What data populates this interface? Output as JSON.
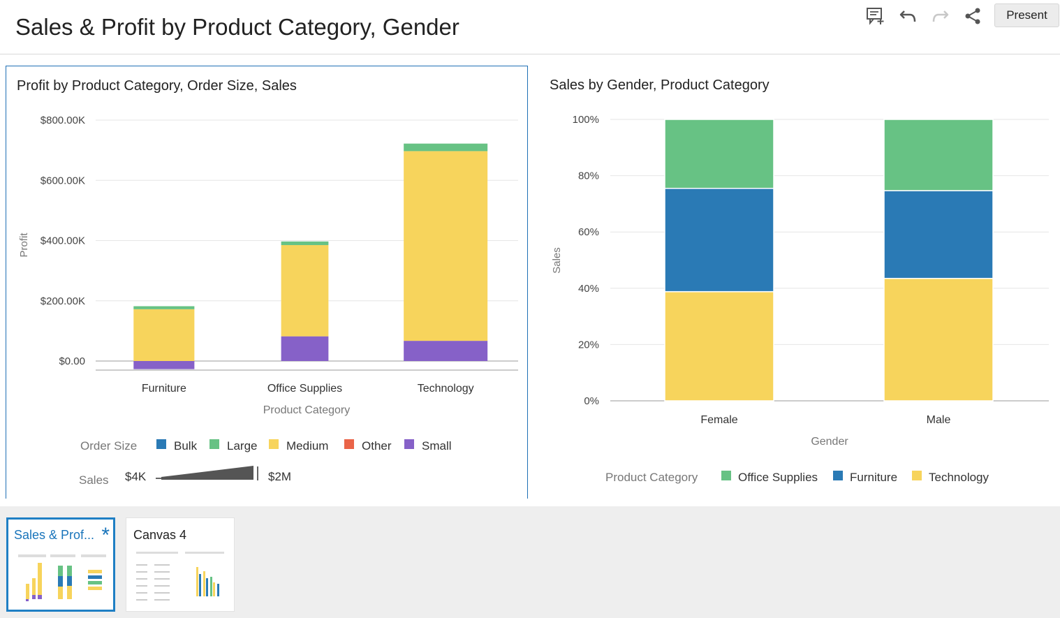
{
  "header": {
    "title": "Sales & Profit by Product Category, Gender",
    "present_label": "Present",
    "icons": [
      "add-comment-icon",
      "undo-icon",
      "redo-icon",
      "share-icon"
    ]
  },
  "left_panel": {
    "title": "Profit by Product Category, Order Size, Sales",
    "legend": {
      "title": "Order Size",
      "items": [
        {
          "label": "Bulk",
          "color": "#2a7ab5"
        },
        {
          "label": "Large",
          "color": "#67c284"
        },
        {
          "label": "Medium",
          "color": "#f7d45c"
        },
        {
          "label": "Other",
          "color": "#ea6448"
        },
        {
          "label": "Small",
          "color": "#8661c8"
        }
      ]
    },
    "size_legend": {
      "title": "Sales",
      "min_label": "$4K",
      "max_label": "$2M"
    }
  },
  "right_panel": {
    "title": "Sales by Gender, Product Category",
    "legend": {
      "title": "Product Category",
      "items": [
        {
          "label": "Office Supplies",
          "color": "#67c284"
        },
        {
          "label": "Furniture",
          "color": "#2a7ab5"
        },
        {
          "label": "Technology",
          "color": "#f7d45c"
        }
      ]
    }
  },
  "chart_data": [
    {
      "type": "bar",
      "stacked": true,
      "title": "Profit by Product Category, Order Size, Sales",
      "xlabel": "Product Category",
      "ylabel": "Profit",
      "categories": [
        "Furniture",
        "Office Supplies",
        "Technology"
      ],
      "ylim": [
        -30000,
        800000
      ],
      "yticks": [
        0,
        200000,
        400000,
        600000,
        800000
      ],
      "ytick_labels": [
        "$0.00",
        "$200.00K",
        "$400.00K",
        "$600.00K",
        "$800.00K"
      ],
      "width_encoding": "Sales",
      "series": [
        {
          "name": "Small",
          "color": "#8661c8",
          "values": [
            -27000,
            82000,
            67000
          ]
        },
        {
          "name": "Medium",
          "color": "#f7d45c",
          "values": [
            172000,
            303000,
            630000
          ]
        },
        {
          "name": "Large",
          "color": "#67c284",
          "values": [
            10000,
            12000,
            25000
          ]
        }
      ],
      "relative_widths": [
        0.45,
        0.35,
        0.62
      ],
      "grid": true
    },
    {
      "type": "bar",
      "stacked": true,
      "percent": true,
      "title": "Sales by Gender, Product Category",
      "xlabel": "Gender",
      "ylabel": "Sales",
      "categories": [
        "Female",
        "Male"
      ],
      "ylim": [
        0,
        100
      ],
      "yticks": [
        0,
        20,
        40,
        60,
        80,
        100
      ],
      "ytick_labels": [
        "0%",
        "20%",
        "40%",
        "60%",
        "80%",
        "100%"
      ],
      "series": [
        {
          "name": "Technology",
          "color": "#f7d45c",
          "values": [
            38.8,
            43.5
          ]
        },
        {
          "name": "Furniture",
          "color": "#2a7ab5",
          "values": [
            36.7,
            31.2
          ]
        },
        {
          "name": "Office Supplies",
          "color": "#67c284",
          "values": [
            24.5,
            25.3
          ]
        }
      ],
      "grid": true
    }
  ],
  "canvases": [
    {
      "label": "Sales & Prof...",
      "active": true,
      "modified_marker": "*"
    },
    {
      "label": "Canvas 4",
      "active": false
    }
  ]
}
